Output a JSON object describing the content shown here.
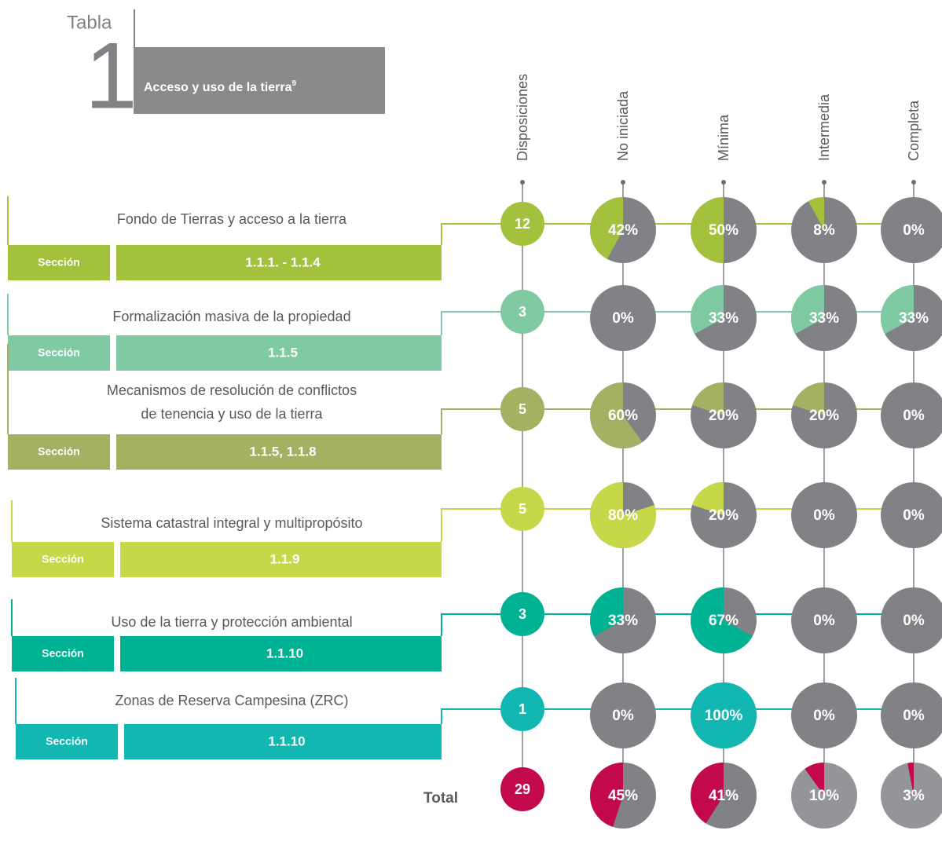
{
  "header": {
    "tabla": "Tabla",
    "number": "1",
    "title": "Acceso y uso de la tierra",
    "superscript": "9"
  },
  "columns": [
    "Disposiciones",
    "No iniciada",
    "Mínima",
    "Intermedia",
    "Completa"
  ],
  "rows": [
    {
      "name": [
        "Fondo de Tierras y acceso a la tierra"
      ],
      "section_label": "Sección",
      "section": "1.1.1. - 1.1.4",
      "color": "#a3c13c",
      "count": 12,
      "values": [
        42,
        50,
        8,
        0
      ],
      "value_labels": [
        "42%",
        "50%",
        "8%",
        "0%"
      ]
    },
    {
      "name": [
        "Formalización masiva de la propiedad"
      ],
      "section_label": "Sección",
      "section": "1.1.5",
      "color": "#7fcaa3",
      "count": 3,
      "values": [
        0,
        33,
        33,
        33
      ],
      "value_labels": [
        "0%",
        "33%",
        "33%",
        "33%"
      ]
    },
    {
      "name": [
        "Mecanismos de resolución de conflictos",
        "de tenencia y uso de la tierra"
      ],
      "section_label": "Sección",
      "section": "1.1.5, 1.1.8",
      "color": "#a5b062",
      "count": 5,
      "values": [
        60,
        20,
        20,
        0
      ],
      "value_labels": [
        "60%",
        "20%",
        "20%",
        "0%"
      ]
    },
    {
      "name": [
        "Sistema catastral integral y multipropósito"
      ],
      "section_label": "Sección",
      "section": "1.1.9",
      "color": "#c6d84a",
      "count": 5,
      "values": [
        80,
        20,
        0,
        0
      ],
      "value_labels": [
        "80%",
        "20%",
        "0%",
        "0%"
      ]
    },
    {
      "name": [
        "Uso de la tierra y protección ambiental"
      ],
      "section_label": "Sección",
      "section": "1.1.10",
      "color": "#00b294",
      "count": 3,
      "values": [
        33,
        67,
        0,
        0
      ],
      "value_labels": [
        "33%",
        "67%",
        "0%",
        "0%"
      ]
    },
    {
      "name": [
        "Zonas de Reserva Campesina (ZRC)"
      ],
      "section_label": "Sección",
      "section": "1.1.10",
      "color": "#12b7b1",
      "count": 1,
      "values": [
        0,
        100,
        0,
        0
      ],
      "value_labels": [
        "0%",
        "100%",
        "0%",
        "0%"
      ]
    }
  ],
  "total": {
    "label": "Total",
    "color": "#c4084d",
    "count": 29,
    "values": [
      45,
      41,
      10,
      3
    ],
    "value_labels": [
      "45%",
      "41%",
      "10%",
      "3%"
    ]
  }
}
